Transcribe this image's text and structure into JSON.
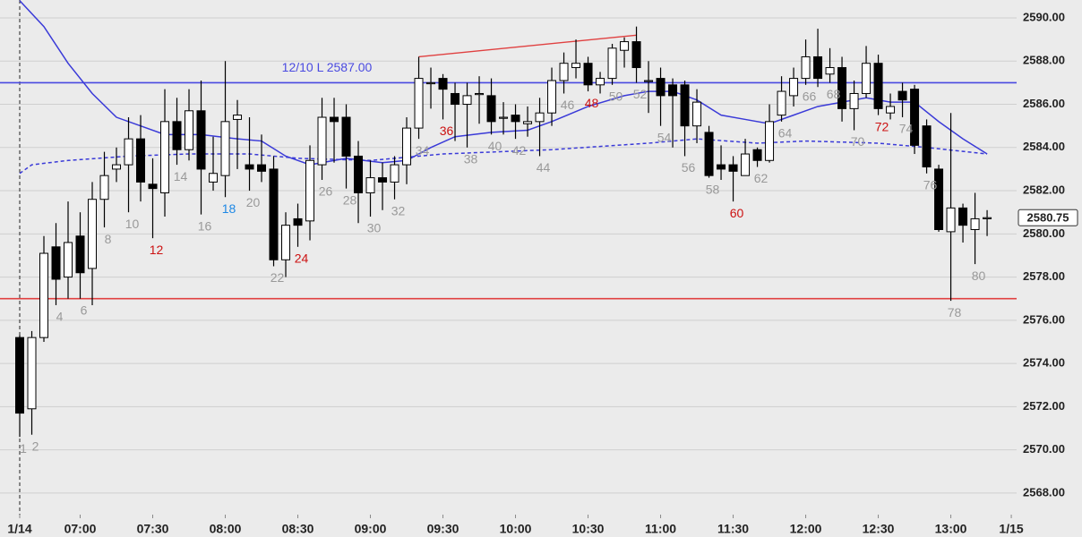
{
  "chart_data": {
    "type": "candlestick",
    "x": [
      1,
      2,
      3,
      4,
      5,
      6,
      7,
      8,
      9,
      10,
      11,
      12,
      13,
      14,
      15,
      16,
      17,
      18,
      19,
      20,
      21,
      22,
      23,
      24,
      25,
      26,
      27,
      28,
      29,
      30,
      31,
      32,
      33,
      34,
      35,
      36,
      37,
      38,
      39,
      40,
      41,
      42,
      43,
      44,
      45,
      46,
      47,
      48,
      49,
      50,
      51,
      52,
      53,
      54,
      55,
      56,
      57,
      58,
      59,
      60,
      61,
      62,
      63,
      64,
      65,
      66,
      67,
      68,
      69,
      70,
      71,
      72,
      73,
      74,
      75,
      76,
      77,
      78,
      79,
      80,
      81
    ],
    "open": [
      2575.2,
      2571.9,
      2575.2,
      2579.4,
      2578.0,
      2579.9,
      2578.4,
      2581.6,
      2583.0,
      2583.2,
      2584.4,
      2582.3,
      2581.9,
      2585.2,
      2583.9,
      2585.7,
      2582.4,
      2582.7,
      2585.3,
      2583.2,
      2583.2,
      2583.0,
      2578.8,
      2580.7,
      2580.6,
      2583.2,
      2585.4,
      2585.4,
      2583.6,
      2581.9,
      2582.6,
      2582.4,
      2583.2,
      2584.9,
      2587.0,
      2587.2,
      2586.5,
      2586.0,
      2586.5,
      2586.4,
      2585.4,
      2585.5,
      2585.1,
      2585.2,
      2585.6,
      2587.1,
      2587.7,
      2587.9,
      2586.9,
      2587.2,
      2588.5,
      2588.9,
      2587.1,
      2587.2,
      2586.9,
      2586.9,
      2585.0,
      2584.7,
      2583.2,
      2583.2,
      2582.7,
      2583.9,
      2583.4,
      2585.5,
      2586.4,
      2587.2,
      2588.2,
      2587.4,
      2587.7,
      2585.8,
      2586.5,
      2587.9,
      2585.6,
      2586.6,
      2586.7,
      2585.0,
      2583.0,
      2580.1,
      2581.2,
      2580.2,
      2580.7
    ],
    "high": [
      2575.3,
      2575.5,
      2579.9,
      2580.5,
      2581.5,
      2581.0,
      2582.4,
      2583.8,
      2584.0,
      2585.4,
      2585.5,
      2583.5,
      2586.7,
      2586.3,
      2586.7,
      2587.1,
      2584.5,
      2588.0,
      2586.2,
      2585.4,
      2584.6,
      2583.6,
      2581.0,
      2581.4,
      2584.1,
      2586.3,
      2586.3,
      2586.0,
      2584.3,
      2583.4,
      2583.3,
      2583.6,
      2585.4,
      2588.2,
      2587.7,
      2587.4,
      2587.0,
      2587.0,
      2587.3,
      2587.2,
      2586.1,
      2586.0,
      2585.9,
      2586.3,
      2587.7,
      2588.4,
      2589.0,
      2588.2,
      2587.5,
      2588.8,
      2589.1,
      2589.6,
      2588.0,
      2587.7,
      2587.2,
      2587.1,
      2586.7,
      2585.0,
      2584.1,
      2583.6,
      2584.4,
      2584.0,
      2586.0,
      2587.3,
      2587.7,
      2589.0,
      2589.5,
      2588.6,
      2588.2,
      2587.1,
      2588.7,
      2588.3,
      2586.5,
      2587.0,
      2586.9,
      2585.3,
      2583.2,
      2585.6,
      2581.4,
      2581.9,
      2581.1
    ],
    "low": [
      2570.6,
      2570.7,
      2575.0,
      2576.7,
      2577.0,
      2577.0,
      2576.7,
      2580.3,
      2582.4,
      2581.0,
      2581.5,
      2579.8,
      2580.8,
      2583.2,
      2583.4,
      2580.9,
      2582.0,
      2581.7,
      2583.0,
      2582.0,
      2582.4,
      2578.5,
      2578.0,
      2579.4,
      2579.7,
      2582.5,
      2583.3,
      2582.1,
      2580.5,
      2580.8,
      2581.1,
      2581.6,
      2582.3,
      2584.4,
      2585.8,
      2585.3,
      2584.3,
      2584.0,
      2585.1,
      2584.6,
      2584.6,
      2584.4,
      2584.5,
      2583.6,
      2585.0,
      2586.5,
      2587.2,
      2586.6,
      2586.5,
      2586.9,
      2587.7,
      2587.0,
      2585.6,
      2585.0,
      2584.0,
      2583.6,
      2584.2,
      2582.6,
      2582.5,
      2581.5,
      2582.7,
      2583.1,
      2583.3,
      2585.2,
      2585.9,
      2586.9,
      2586.8,
      2587.0,
      2585.2,
      2584.8,
      2586.3,
      2585.5,
      2585.3,
      2585.4,
      2583.7,
      2582.8,
      2580.1,
      2576.9,
      2579.6,
      2578.6,
      2579.9
    ],
    "close": [
      2571.7,
      2575.2,
      2579.1,
      2577.9,
      2579.6,
      2578.2,
      2581.6,
      2582.7,
      2583.2,
      2584.4,
      2582.4,
      2582.1,
      2585.2,
      2583.9,
      2585.7,
      2583.0,
      2582.8,
      2585.2,
      2585.5,
      2583.0,
      2582.9,
      2578.8,
      2580.4,
      2580.4,
      2583.4,
      2585.4,
      2585.2,
      2583.6,
      2581.9,
      2582.6,
      2582.4,
      2583.2,
      2584.9,
      2587.2,
      2587.0,
      2586.7,
      2586.0,
      2586.4,
      2586.5,
      2585.2,
      2585.4,
      2585.2,
      2585.2,
      2585.6,
      2587.1,
      2587.9,
      2587.9,
      2586.9,
      2587.2,
      2588.6,
      2588.9,
      2587.7,
      2587.1,
      2586.4,
      2586.4,
      2585.0,
      2586.1,
      2582.7,
      2583.0,
      2582.9,
      2583.7,
      2583.4,
      2585.2,
      2586.6,
      2587.2,
      2588.2,
      2587.2,
      2587.7,
      2585.8,
      2586.5,
      2587.9,
      2585.8,
      2585.9,
      2586.2,
      2584.1,
      2583.1,
      2580.2,
      2581.2,
      2580.4,
      2580.7,
      2580.75
    ],
    "lines": [
      {
        "color": "#3a3ad8",
        "dashed": false,
        "x": [
          1,
          3,
          5,
          7,
          9,
          11,
          13,
          16,
          19,
          21,
          23,
          25,
          28,
          31,
          33,
          35,
          37,
          40,
          43,
          45,
          48,
          51,
          53,
          55,
          57,
          59,
          61,
          63,
          65,
          67,
          69,
          71,
          73,
          75,
          77,
          79,
          81
        ],
        "values": [
          2590.8,
          2589.6,
          2587.9,
          2586.5,
          2585.4,
          2585.0,
          2584.6,
          2584.6,
          2584.4,
          2584.3,
          2583.6,
          2583.2,
          2583.5,
          2583.3,
          2583.4,
          2584.0,
          2584.5,
          2584.7,
          2584.8,
          2585.2,
          2585.9,
          2586.4,
          2586.6,
          2586.6,
          2586.2,
          2585.5,
          2585.3,
          2585.1,
          2585.5,
          2585.9,
          2586.1,
          2586.3,
          2586.1,
          2586.1,
          2585.2,
          2584.4,
          2583.7
        ]
      },
      {
        "color": "#3a3ad8",
        "dashed": true,
        "x": [
          1,
          2,
          5,
          10,
          15,
          20,
          24,
          30,
          36,
          45,
          53,
          57,
          62,
          66,
          72,
          76,
          81
        ],
        "values": [
          2582.8,
          2583.2,
          2583.4,
          2583.6,
          2583.7,
          2583.7,
          2583.5,
          2583.4,
          2583.7,
          2583.9,
          2584.2,
          2584.4,
          2584.2,
          2584.3,
          2584.2,
          2584.0,
          2583.7
        ]
      }
    ],
    "hlines": [
      {
        "value": 2587.0,
        "color": "#4a4ae0",
        "label": "12/10 L 2587.00"
      },
      {
        "value": 2577.0,
        "color": "#e04040"
      }
    ],
    "trendlines": [
      {
        "x": [
          34,
          52
        ],
        "values": [
          2588.2,
          2589.2
        ],
        "color": "#e04040"
      }
    ],
    "session_start": 1,
    "last_price": 2580.75,
    "bar_labels": [
      {
        "bar": 1,
        "color": "#999999"
      },
      {
        "bar": 2,
        "color": "#999999"
      },
      {
        "bar": 4,
        "color": "#999999"
      },
      {
        "bar": 6,
        "color": "#999999"
      },
      {
        "bar": 8,
        "color": "#999999"
      },
      {
        "bar": 10,
        "color": "#999999"
      },
      {
        "bar": 12,
        "color": "#cc1111"
      },
      {
        "bar": 14,
        "color": "#999999"
      },
      {
        "bar": 16,
        "color": "#999999"
      },
      {
        "bar": 18,
        "color": "#1e88e5"
      },
      {
        "bar": 20,
        "color": "#999999"
      },
      {
        "bar": 22,
        "color": "#999999"
      },
      {
        "bar": 24,
        "color": "#cc1111"
      },
      {
        "bar": 26,
        "color": "#999999"
      },
      {
        "bar": 28,
        "color": "#999999"
      },
      {
        "bar": 30,
        "color": "#999999"
      },
      {
        "bar": 32,
        "color": "#999999"
      },
      {
        "bar": 34,
        "color": "#999999"
      },
      {
        "bar": 36,
        "color": "#cc1111"
      },
      {
        "bar": 38,
        "color": "#999999"
      },
      {
        "bar": 40,
        "color": "#999999"
      },
      {
        "bar": 42,
        "color": "#999999"
      },
      {
        "bar": 44,
        "color": "#999999"
      },
      {
        "bar": 46,
        "color": "#999999"
      },
      {
        "bar": 48,
        "color": "#cc1111"
      },
      {
        "bar": 50,
        "color": "#999999"
      },
      {
        "bar": 52,
        "color": "#999999"
      },
      {
        "bar": 54,
        "color": "#999999"
      },
      {
        "bar": 56,
        "color": "#999999"
      },
      {
        "bar": 58,
        "color": "#999999"
      },
      {
        "bar": 60,
        "color": "#cc1111"
      },
      {
        "bar": 62,
        "color": "#999999"
      },
      {
        "bar": 64,
        "color": "#999999"
      },
      {
        "bar": 66,
        "color": "#999999"
      },
      {
        "bar": 68,
        "color": "#999999"
      },
      {
        "bar": 70,
        "color": "#999999"
      },
      {
        "bar": 72,
        "color": "#cc1111"
      },
      {
        "bar": 74,
        "color": "#999999"
      },
      {
        "bar": 76,
        "color": "#999999"
      },
      {
        "bar": 78,
        "color": "#999999"
      },
      {
        "bar": 80,
        "color": "#999999"
      }
    ],
    "xlim": [
      -0.63,
      83.44
    ],
    "ylim": [
      2567.0,
      2590.83
    ],
    "xticks": [
      {
        "value": 1,
        "label": "1/14"
      },
      {
        "value": 6,
        "label": "07:00"
      },
      {
        "value": 12,
        "label": "07:30"
      },
      {
        "value": 18,
        "label": "08:00"
      },
      {
        "value": 24,
        "label": "08:30"
      },
      {
        "value": 30,
        "label": "09:00"
      },
      {
        "value": 36,
        "label": "09:30"
      },
      {
        "value": 42,
        "label": "10:00"
      },
      {
        "value": 48,
        "label": "10:30"
      },
      {
        "value": 54,
        "label": "11:00"
      },
      {
        "value": 60,
        "label": "11:30"
      },
      {
        "value": 66,
        "label": "12:00"
      },
      {
        "value": 72,
        "label": "12:30"
      },
      {
        "value": 78,
        "label": "13:00"
      },
      {
        "value": 83,
        "label": "1/15"
      }
    ],
    "yticks": [
      {
        "value": 2568,
        "label": "2568.00"
      },
      {
        "value": 2570,
        "label": "2570.00"
      },
      {
        "value": 2572,
        "label": "2572.00"
      },
      {
        "value": 2574,
        "label": "2574.00"
      },
      {
        "value": 2576,
        "label": "2576.00"
      },
      {
        "value": 2578,
        "label": "2578.00"
      },
      {
        "value": 2580,
        "label": "2580.00"
      },
      {
        "value": 2582,
        "label": "2582.00"
      },
      {
        "value": 2584,
        "label": "2584.00"
      },
      {
        "value": 2586,
        "label": "2586.00"
      },
      {
        "value": 2588,
        "label": "2588.00"
      },
      {
        "value": 2590,
        "label": "2590.00"
      }
    ],
    "grid": true,
    "up_color": "#ffffff",
    "down_color": "#000000"
  }
}
